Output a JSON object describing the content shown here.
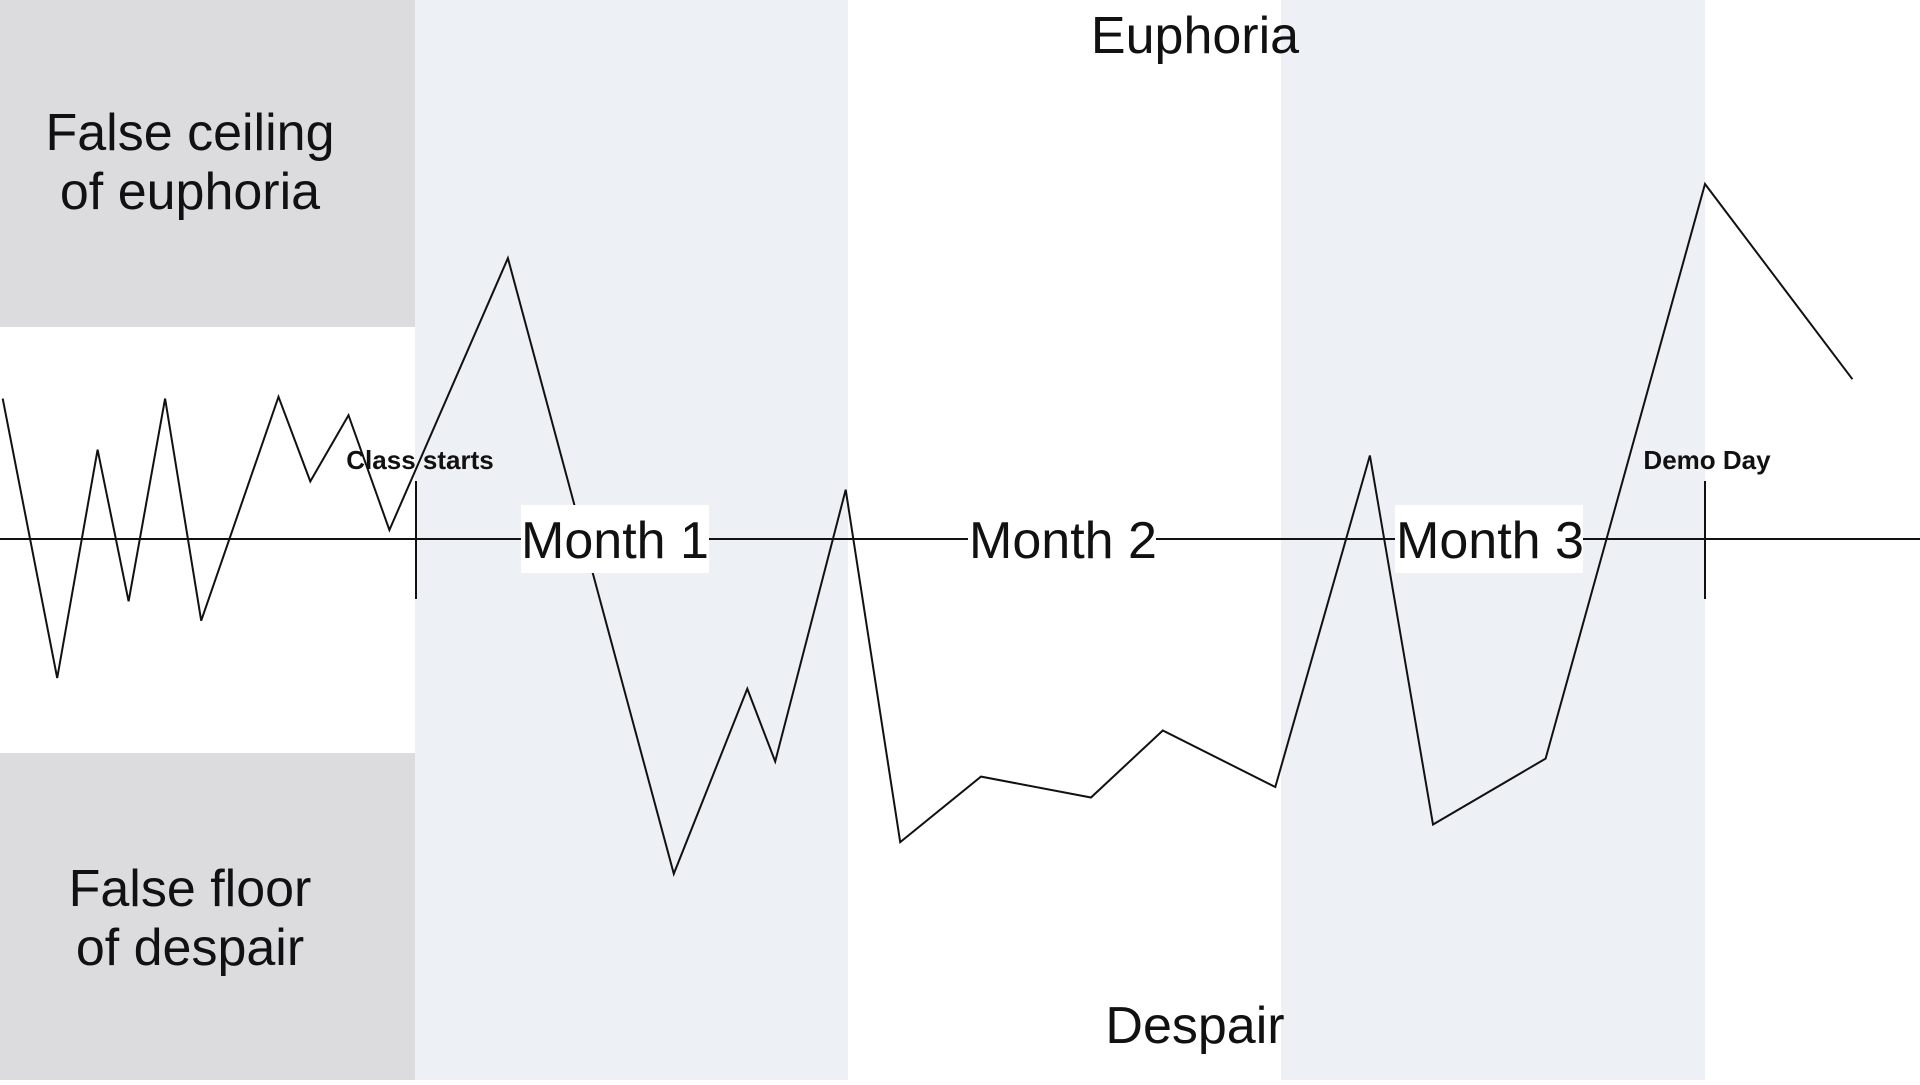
{
  "colors": {
    "background": "#ffffff",
    "false_zone": "#dcdcdf",
    "month_band": "#edf1f5",
    "line": "#111111",
    "text": "#111111"
  },
  "labels": {
    "false_ceiling_line1": "False ceiling",
    "false_ceiling_line2": "of euphoria",
    "false_floor_line1": "False floor",
    "false_floor_line2": "of despair",
    "euphoria": "Euphoria",
    "despair": "Despair",
    "class_starts": "Class starts",
    "demo_day": "Demo Day"
  },
  "months": [
    {
      "label": "Month 1"
    },
    {
      "label": "Month 2"
    },
    {
      "label": "Month 3"
    }
  ],
  "chart_data": {
    "type": "line",
    "title": "",
    "xlabel": "",
    "ylabel": "",
    "x_markers": [
      {
        "label": "Class starts",
        "x": 0
      },
      {
        "label": "Demo Day",
        "x": 3
      }
    ],
    "y_range_labels": {
      "top": "Euphoria",
      "bottom": "Despair"
    },
    "xlim": [
      -1,
      3.35
    ],
    "ylim": [
      -1,
      1
    ],
    "series": [
      {
        "x": [
          -0.962,
          -0.835,
          -0.741,
          -0.669,
          -0.584,
          -0.5,
          -0.32,
          -0.246,
          -0.157,
          -0.062,
          0.214,
          0.6,
          0.771,
          0.836,
          1.0,
          1.127,
          1.315,
          1.571,
          1.738,
          2.0,
          2.22,
          2.367,
          2.629,
          3.0,
          3.343
        ],
        "y": [
          0.39,
          -0.386,
          0.248,
          -0.173,
          0.39,
          -0.227,
          0.395,
          0.16,
          0.344,
          0.025,
          0.78,
          -0.93,
          -0.416,
          -0.618,
          0.137,
          -0.842,
          -0.66,
          -0.718,
          -0.532,
          -0.689,
          0.232,
          -0.793,
          -0.61,
          0.986,
          0.444
        ]
      }
    ]
  }
}
